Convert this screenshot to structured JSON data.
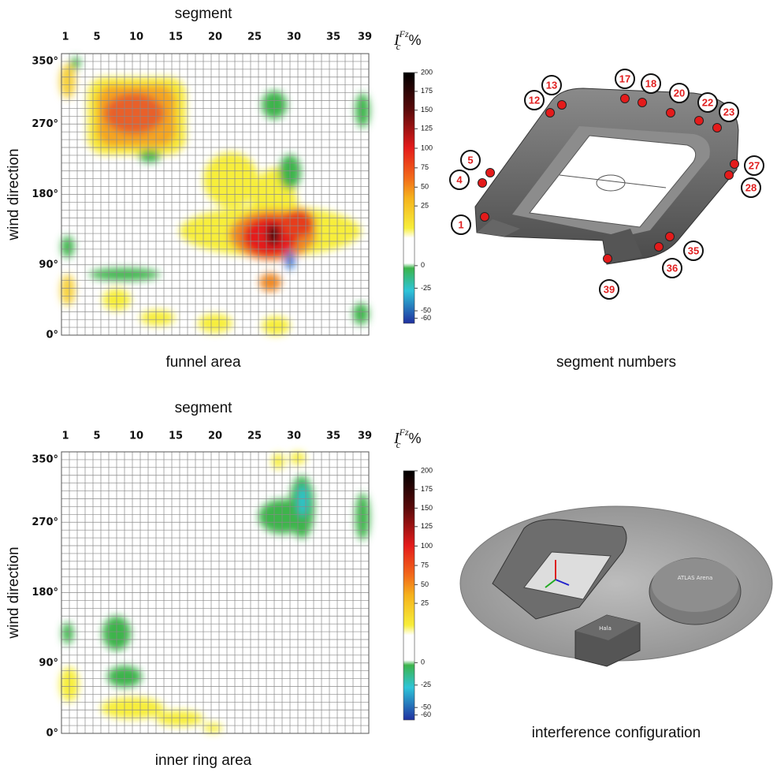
{
  "panels": [
    {
      "top_label": "segment",
      "x_ticks": [
        "1",
        "5",
        "10",
        "15",
        "20",
        "25",
        "30",
        "35",
        "39"
      ],
      "y_label": "wind direction",
      "y_ticks": [
        "350°",
        "270°",
        "180°",
        "90°",
        "0°"
      ],
      "bottom_label": "funnel area",
      "colorbar_symbol": "I",
      "colorbar_subscript": "c",
      "colorbar_superscript": "Fz",
      "colorbar_unit": "%",
      "colorbar_ticks": [
        "200",
        "175",
        "150",
        "125",
        "100",
        "75",
        "50",
        "25",
        "0",
        "-25",
        "-50",
        "-60"
      ]
    },
    {
      "top_label": "segment",
      "x_ticks": [
        "1",
        "5",
        "10",
        "15",
        "20",
        "25",
        "30",
        "35",
        "39"
      ],
      "y_label": "wind direction",
      "y_ticks": [
        "350°",
        "270°",
        "180°",
        "90°",
        "0°"
      ],
      "bottom_label": "inner ring area",
      "colorbar_symbol": "I",
      "colorbar_subscript": "c",
      "colorbar_superscript": "Fz",
      "colorbar_unit": "%",
      "colorbar_ticks": [
        "200",
        "175",
        "150",
        "125",
        "100",
        "75",
        "50",
        "25",
        "0",
        "-25",
        "-50",
        "-60"
      ]
    }
  ],
  "stadium": {
    "caption": "segment numbers",
    "markers": [
      "1",
      "4",
      "5",
      "12",
      "13",
      "17",
      "18",
      "20",
      "22",
      "23",
      "27",
      "28",
      "35",
      "36",
      "39"
    ]
  },
  "interference": {
    "caption": "interference configuration",
    "labels": [
      "ATLAS Arena",
      "Hala"
    ]
  }
}
